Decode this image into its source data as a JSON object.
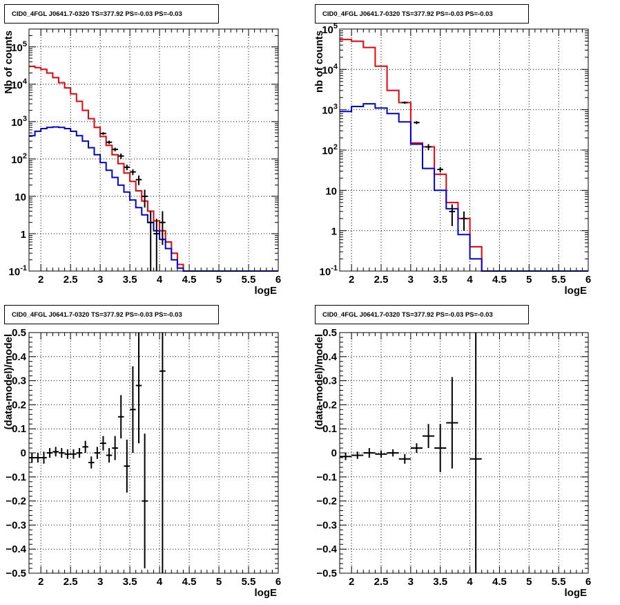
{
  "panels": [
    {
      "title": "CID0_4FGL J0641.7-0320 TS=377.92 PS=-0.03 PS=-0.03"
    },
    {
      "title": "CID0_4FGL J0641.7-0320 TS=377.92 PS=-0.03 PS=-0.03"
    },
    {
      "title": "CID0_4FGL J0641.7-0320 TS=377.92 PS=-0.03 PS=-0.03"
    },
    {
      "title": "CID0_4FGL J0641.7-0320 TS=377.92 PS=-0.03 PS=-0.03"
    }
  ],
  "colors": {
    "data": "#000000",
    "total_model": "#e8000b",
    "component": "#0000d8",
    "grid": "#000000"
  },
  "chart_data": [
    {
      "type": "line",
      "title": "CID0_4FGL J0641.7-0320 TS=377.92 PS=-0.03 PS=-0.03",
      "xlabel": "logE",
      "ylabel": "Nb of counts",
      "xlim": [
        1.8,
        6.0
      ],
      "ylim": [
        0.1,
        300000
      ],
      "yscale": "log",
      "grid": true,
      "xticklabels": [
        "2",
        "2.5",
        "3",
        "3.5",
        "4",
        "4.5",
        "5",
        "5.5",
        "6"
      ],
      "yticklabels": [
        "10^-1",
        "1",
        "10",
        "10^2",
        "10^3",
        "10^4",
        "10^5"
      ],
      "bin_edges": [
        1.8,
        1.9,
        2.0,
        2.1,
        2.2,
        2.3,
        2.4,
        2.5,
        2.6,
        2.7,
        2.8,
        2.9,
        3.0,
        3.1,
        3.2,
        3.3,
        3.4,
        3.5,
        3.6,
        3.7,
        3.8,
        3.9,
        4.0,
        4.1,
        4.2,
        4.3,
        4.4,
        4.5,
        4.6,
        4.7,
        4.8,
        4.9,
        5.0,
        5.1,
        5.2,
        5.3,
        5.4,
        5.5,
        5.6,
        5.7,
        5.8,
        5.9,
        6.0
      ],
      "series": [
        {
          "style": "step",
          "color": "#e8000b",
          "values": [
            30000,
            28000,
            25000,
            20000,
            15000,
            11000,
            8000,
            5500,
            3500,
            2000,
            1200,
            700,
            400,
            230,
            130,
            75,
            42,
            25,
            14,
            7.5,
            4,
            2.2,
            1.2,
            0.6,
            0.3,
            0.15,
            0.1,
            0.1,
            0.1,
            0.1,
            0.1,
            0.1,
            0.1,
            0.1,
            0.1,
            0.1,
            0.1,
            0.1,
            0.1,
            0.1,
            0.1,
            0.1
          ]
        },
        {
          "style": "step",
          "color": "#0000d8",
          "values": [
            420,
            550,
            650,
            700,
            720,
            700,
            650,
            550,
            420,
            300,
            200,
            130,
            80,
            50,
            32,
            20,
            13,
            8,
            5,
            3.2,
            2,
            1.2,
            0.7,
            0.4,
            0.2,
            0.12,
            0.1,
            0.1,
            0.1,
            0.1,
            0.1,
            0.1,
            0.1,
            0.1,
            0.1,
            0.1,
            0.1,
            0.1,
            0.1,
            0.1,
            0.1,
            0.1
          ]
        },
        {
          "style": "errorbar",
          "color": "#000000",
          "x": [
            3.05,
            3.15,
            3.25,
            3.35,
            3.45,
            3.55,
            3.65,
            3.75,
            3.85,
            3.95,
            4.05
          ],
          "y": [
            480,
            280,
            180,
            120,
            60,
            45,
            28,
            10,
            2,
            1,
            2
          ],
          "ylow": [
            440,
            250,
            160,
            100,
            50,
            37,
            20,
            5,
            0.1,
            0.1,
            0.5
          ],
          "yhigh": [
            520,
            310,
            200,
            140,
            70,
            53,
            36,
            15,
            4,
            2.5,
            4
          ]
        }
      ]
    },
    {
      "type": "line",
      "title": "CID0_4FGL J0641.7-0320 TS=377.92 PS=-0.03 PS=-0.03",
      "xlabel": "logE",
      "ylabel": "nb of counts",
      "xlim": [
        1.8,
        6.0
      ],
      "ylim": [
        0.1,
        100000
      ],
      "yscale": "log",
      "grid": true,
      "xticklabels": [
        "2",
        "2.5",
        "3",
        "3.5",
        "4",
        "4.5",
        "5",
        "5.5",
        "6"
      ],
      "yticklabels": [
        "10^-1",
        "1",
        "10",
        "10^2",
        "10^3",
        "10^4",
        "10^5"
      ],
      "bin_edges": [
        1.8,
        2.0,
        2.2,
        2.4,
        2.6,
        2.8,
        3.0,
        3.2,
        3.4,
        3.6,
        3.8,
        4.0,
        4.2,
        4.4,
        4.6,
        4.8,
        5.0,
        5.2,
        5.4,
        5.6,
        5.8,
        6.0
      ],
      "series": [
        {
          "style": "step",
          "color": "#e8000b",
          "values": [
            55000,
            50000,
            35000,
            12000,
            3000,
            1500,
            150,
            120,
            25,
            5,
            2,
            0.4,
            0.1,
            0.1,
            0.1,
            0.1,
            0.1,
            0.1,
            0.1,
            0.1,
            0.1
          ]
        },
        {
          "style": "step",
          "color": "#0000d8",
          "values": [
            900,
            1200,
            1400,
            1100,
            800,
            500,
            140,
            35,
            10,
            3.5,
            0.8,
            0.2,
            0.1,
            0.1,
            0.1,
            0.1,
            0.1,
            0.1,
            0.1,
            0.1,
            0.1
          ]
        },
        {
          "style": "errorbar",
          "color": "#000000",
          "x": [
            2.9,
            3.1,
            3.3,
            3.5,
            3.7,
            3.9
          ],
          "y": [
            1500,
            480,
            120,
            33,
            3,
            2
          ],
          "ylow": [
            1400,
            440,
            100,
            28,
            1.3,
            1
          ],
          "yhigh": [
            1600,
            520,
            140,
            38,
            4.5,
            3
          ]
        }
      ]
    },
    {
      "type": "scatter",
      "title": "CID0_4FGL J0641.7-0320 TS=377.92 PS=-0.03 PS=-0.03",
      "xlabel": "logE",
      "ylabel": "(data-model)/model",
      "xlim": [
        1.8,
        6.0
      ],
      "ylim": [
        -0.5,
        0.5
      ],
      "grid": true,
      "xticklabels": [
        "2",
        "2.5",
        "3",
        "3.5",
        "4",
        "4.5",
        "5",
        "5.5",
        "6"
      ],
      "yticklabels": [
        "-0.5",
        "-0.4",
        "-0.3",
        "-0.2",
        "-0.1",
        "0",
        "0.1",
        "0.2",
        "0.3",
        "0.4",
        "0.5"
      ],
      "points": {
        "x": [
          1.85,
          1.95,
          2.05,
          2.15,
          2.25,
          2.35,
          2.45,
          2.55,
          2.65,
          2.75,
          2.85,
          2.95,
          3.05,
          3.15,
          3.25,
          3.35,
          3.45,
          3.55,
          3.65,
          3.75,
          4.05
        ],
        "y": [
          -0.02,
          -0.02,
          -0.02,
          0.0,
          0.005,
          0.0,
          -0.005,
          -0.005,
          0.0,
          0.025,
          -0.04,
          0.0,
          0.04,
          -0.01,
          0.02,
          0.15,
          -0.055,
          0.18,
          0.28,
          -0.2,
          0.34
        ],
        "yerr": [
          0.02,
          0.02,
          0.025,
          0.02,
          0.02,
          0.02,
          0.02,
          0.02,
          0.02,
          0.025,
          0.025,
          0.025,
          0.03,
          0.03,
          0.05,
          0.09,
          0.11,
          0.18,
          0.24,
          0.28,
          0.9
        ],
        "xerr": [
          0.05,
          0.05,
          0.05,
          0.05,
          0.05,
          0.05,
          0.05,
          0.05,
          0.05,
          0.05,
          0.05,
          0.05,
          0.05,
          0.05,
          0.05,
          0.05,
          0.05,
          0.05,
          0.05,
          0.05,
          0.05
        ]
      }
    },
    {
      "type": "scatter",
      "title": "CID0_4FGL J0641.7-0320 TS=377.92 PS=-0.03 PS=-0.03",
      "xlabel": "logE",
      "ylabel": "(data-model)/model",
      "xlim": [
        1.8,
        6.0
      ],
      "ylim": [
        -0.5,
        0.5
      ],
      "grid": true,
      "xticklabels": [
        "2",
        "2.5",
        "3",
        "3.5",
        "4",
        "4.5",
        "5",
        "5.5",
        "6"
      ],
      "yticklabels": [
        "-0.5",
        "-0.4",
        "-0.3",
        "-0.2",
        "-0.1",
        "0",
        "0.1",
        "0.2",
        "0.3",
        "0.4",
        "0.5"
      ],
      "points": {
        "x": [
          1.9,
          2.1,
          2.3,
          2.5,
          2.7,
          2.9,
          3.1,
          3.3,
          3.5,
          3.7,
          4.1
        ],
        "y": [
          -0.015,
          -0.01,
          0.0,
          -0.005,
          0.0,
          -0.025,
          0.02,
          0.07,
          0.02,
          0.125,
          -0.025
        ],
        "yerr": [
          0.015,
          0.015,
          0.02,
          0.015,
          0.015,
          0.02,
          0.02,
          0.05,
          0.1,
          0.19,
          0.9
        ],
        "xerr": [
          0.1,
          0.1,
          0.1,
          0.1,
          0.1,
          0.1,
          0.1,
          0.1,
          0.1,
          0.1,
          0.1
        ]
      }
    }
  ]
}
